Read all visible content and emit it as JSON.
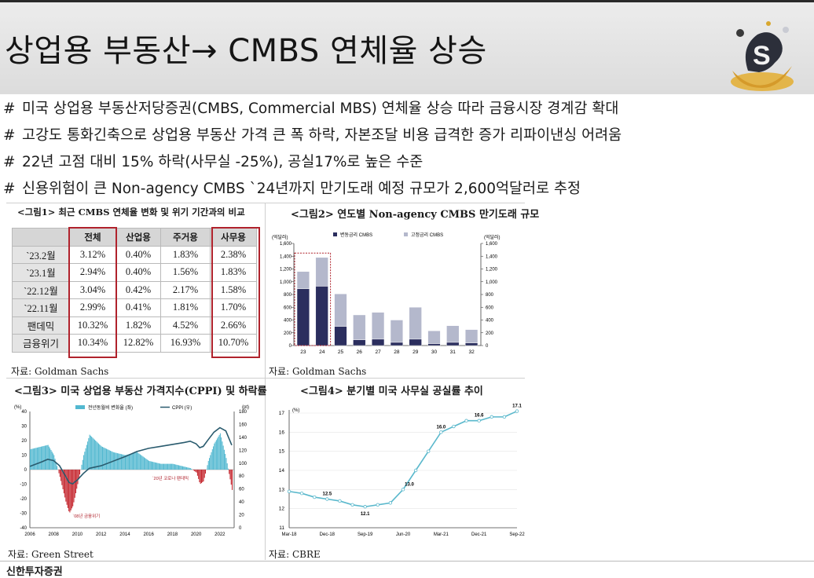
{
  "slide": {
    "title": "상업용 부동산→ CMBS 연체율 상승",
    "bullets": [
      {
        "marker": "#",
        "text": "미국 상업용 부동산저당증권(CMBS, Commercial MBS) 연체율 상승 따라 금융시장 경계감 확대"
      },
      {
        "marker": "#",
        "text": "고강도 통화긴축으로 상업용 부동산 가격 큰 폭 하락, 자본조달 비용 급격한 증가 리파이낸싱 어려움"
      },
      {
        "marker": "#",
        "text": "22년 고점 대비 15% 하락(사무실 -25%), 공실17%로 높은 수준"
      },
      {
        "marker": "#",
        "text": "신용위험이 큰 Non-agency CMBS `24년까지 만기도래 예정 규모가 2,600억달러로 추정"
      }
    ],
    "footer_logo": "신한투자증권"
  },
  "fig1": {
    "title": "<그림1> 최근 CMBS 연체율 변화 및 위기 기간과의 비교",
    "source": "자료: Goldman Sachs",
    "headers": [
      "",
      "전체",
      "산업용",
      "주거용",
      "사무용"
    ],
    "rows": [
      [
        "`23.2월",
        "3.12%",
        "0.40%",
        "1.83%",
        "2.38%"
      ],
      [
        "`23.1월",
        "2.94%",
        "0.40%",
        "1.56%",
        "1.83%"
      ],
      [
        "`22.12월",
        "3.04%",
        "0.42%",
        "2.17%",
        "1.58%"
      ],
      [
        "`22.11월",
        "2.99%",
        "0.41%",
        "1.81%",
        "1.70%"
      ],
      [
        "팬데믹",
        "10.32%",
        "1.82%",
        "4.52%",
        "2.66%"
      ],
      [
        "금융위기",
        "10.34%",
        "12.82%",
        "16.93%",
        "10.70%"
      ]
    ]
  },
  "chart_data": [
    {
      "type": "bar",
      "title": "<그림2> 연도별 Non-agency CMBS 만기도래 규모",
      "source": "자료: Goldman Sachs",
      "unit_left": "(억달러)",
      "unit_right": "(억달러)",
      "categories": [
        "23",
        "24",
        "25",
        "26",
        "27",
        "28",
        "29",
        "30",
        "31",
        "32"
      ],
      "series": [
        {
          "name": "변동금리 CMBS",
          "values": [
            890,
            930,
            300,
            90,
            100,
            50,
            100,
            30,
            50,
            40
          ]
        },
        {
          "name": "고정금리 CMBS",
          "values": [
            270,
            450,
            510,
            390,
            420,
            350,
            500,
            200,
            260,
            210
          ]
        }
      ],
      "stacked": true,
      "ylim": [
        0,
        1600
      ],
      "yticks": [
        0,
        200,
        400,
        600,
        800,
        1000,
        1200,
        1400,
        1600
      ],
      "colors": [
        "#2b2e5e",
        "#b4b8cc"
      ],
      "highlight": [
        "23",
        "24"
      ]
    },
    {
      "type": "area",
      "title": "<그림3> 미국 상업용 부동산 가격지수(CPPI) 및 하락률",
      "source": "자료: Green Street",
      "unit_left": "(%)",
      "unit_right": "(pt)",
      "legend": [
        "전년동월비 변화율 (좌)",
        "CPPI (우)"
      ],
      "x": [
        2006.0,
        2007.0,
        2007.5,
        2008.0,
        2008.5,
        2009.0,
        2009.3,
        2009.6,
        2010.0,
        2010.5,
        2011.0,
        2011.5,
        2012.0,
        2013.0,
        2014.0,
        2015.0,
        2016.0,
        2017.0,
        2018.0,
        2019.0,
        2019.5,
        2020.0,
        2020.3,
        2020.6,
        2021.0,
        2021.5,
        2022.0,
        2022.5,
        2023.0
      ],
      "yoy_pct": [
        14,
        16,
        17,
        10,
        -5,
        -22,
        -30,
        -25,
        -10,
        10,
        24,
        20,
        16,
        12,
        10,
        12,
        6,
        4,
        4,
        2,
        1,
        -2,
        -10,
        -8,
        6,
        18,
        25,
        8,
        -14
      ],
      "cppi": [
        95,
        102,
        106,
        104,
        96,
        80,
        70,
        68,
        74,
        84,
        92,
        94,
        96,
        103,
        110,
        118,
        123,
        126,
        129,
        132,
        134,
        130,
        124,
        126,
        136,
        148,
        155,
        150,
        128
      ],
      "xticks": [
        2006,
        2008,
        2010,
        2012,
        2014,
        2016,
        2018,
        2020,
        2022
      ],
      "ylim_left": [
        -40,
        40
      ],
      "yticks_left": [
        -40,
        -30,
        -20,
        -10,
        0,
        10,
        20,
        30,
        40
      ],
      "ylim_right": [
        0,
        180
      ],
      "yticks_right": [
        0,
        20,
        40,
        60,
        80,
        100,
        120,
        140,
        160,
        180
      ],
      "annotations": [
        "`08년 금융위기",
        "`20년 코로나 팬데믹"
      ],
      "colors": {
        "positive": "#52b8d0",
        "negative": "#c4262e",
        "line": "#2a5b6e"
      }
    },
    {
      "type": "line",
      "title": "<그림4> 분기별 미국 사무실 공실률 추이",
      "source": "자료: CBRE",
      "unit": "(%)",
      "x": [
        "Mar-18",
        "Jun-18",
        "Sep-18",
        "Dec-18",
        "Mar-19",
        "Jun-19",
        "Sep-19",
        "Dec-19",
        "Mar-20",
        "Jun-20",
        "Sep-20",
        "Dec-20",
        "Mar-21",
        "Jun-21",
        "Sep-21",
        "Dec-21",
        "Mar-22",
        "Jun-22",
        "Sep-22"
      ],
      "y": [
        12.9,
        12.8,
        12.6,
        12.5,
        12.4,
        12.2,
        12.1,
        12.2,
        12.3,
        13.0,
        14.0,
        15.0,
        16.0,
        16.3,
        16.6,
        16.6,
        16.8,
        16.8,
        17.1
      ],
      "point_labels": [
        {
          "index": 3,
          "text": "12.5"
        },
        {
          "index": 6,
          "text": "12.1"
        },
        {
          "index": 9,
          "text": "13.0"
        },
        {
          "index": 12,
          "text": "16.0"
        },
        {
          "index": 15,
          "text": "16.6"
        },
        {
          "index": 18,
          "text": "17.1"
        }
      ],
      "xticks": [
        "Mar-18",
        "Dec-18",
        "Sep-19",
        "Jun-20",
        "Mar-21",
        "Dec-21",
        "Sep-22"
      ],
      "ylim": [
        11,
        17
      ],
      "yticks": [
        11,
        12,
        13,
        14,
        15,
        16,
        17
      ],
      "colors": {
        "line": "#5ab8cc",
        "marker": "#ffffff"
      }
    }
  ]
}
